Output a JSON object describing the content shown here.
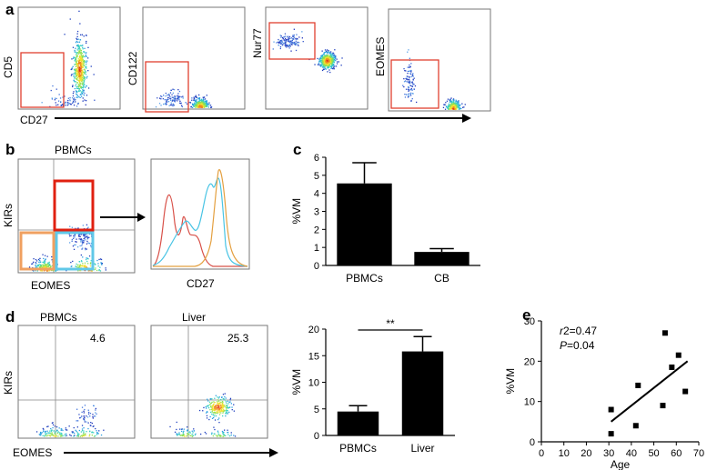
{
  "panels": {
    "a": {
      "letter": "a",
      "markers": [
        "CD5",
        "CD122",
        "Nur77",
        "EOMES"
      ],
      "x_label": "CD27"
    },
    "b": {
      "letter": "b",
      "title": "PBMCs",
      "y_label": "KIRs",
      "x_label": "EOMES",
      "histogram_x_label": "CD27"
    },
    "d_flow": {
      "letter": "d",
      "plots": [
        {
          "title": "PBMCs",
          "value": "4.6"
        },
        {
          "title": "Liver",
          "value": "25.3"
        }
      ],
      "y_label": "KIRs",
      "x_label": "EOMES"
    }
  },
  "chart_data": [
    {
      "panel": "c",
      "letter": "c",
      "type": "bar",
      "categories": [
        "PBMCs",
        "CB"
      ],
      "values": [
        4.55,
        0.75
      ],
      "errors": [
        1.15,
        0.18
      ],
      "ylabel": "%VM",
      "ylim": [
        0,
        6
      ],
      "yticks": [
        "0",
        "1",
        "2",
        "3",
        "4",
        "5",
        "6"
      ]
    },
    {
      "panel": "d",
      "type": "bar",
      "categories": [
        "PBMCs",
        "Liver"
      ],
      "values": [
        4.5,
        15.8
      ],
      "errors": [
        1.1,
        2.8
      ],
      "ylabel": "%VM",
      "ylim": [
        0,
        20
      ],
      "yticks": [
        "0",
        "5",
        "10",
        "15",
        "20"
      ],
      "significance": "**"
    },
    {
      "panel": "e",
      "letter": "e",
      "type": "scatter",
      "x": [
        31,
        31,
        42,
        43,
        54,
        55,
        58,
        61,
        64
      ],
      "y": [
        8,
        2,
        4,
        14,
        9,
        27,
        18.5,
        21.5,
        12.5
      ],
      "xlabel": "Age",
      "ylabel": "%VM",
      "xlim": [
        0,
        70
      ],
      "ylim": [
        0,
        30
      ],
      "xticks": [
        "0",
        "10",
        "20",
        "30",
        "40",
        "50",
        "60",
        "70"
      ],
      "yticks": [
        "0",
        "10",
        "20",
        "30"
      ],
      "fit_line": {
        "x": [
          31,
          65
        ],
        "y": [
          5,
          20
        ]
      },
      "stats": {
        "r2_label": "r",
        "r2_value": "2=0.47",
        "p_label": "P",
        "p_value": "=0.04"
      }
    }
  ]
}
